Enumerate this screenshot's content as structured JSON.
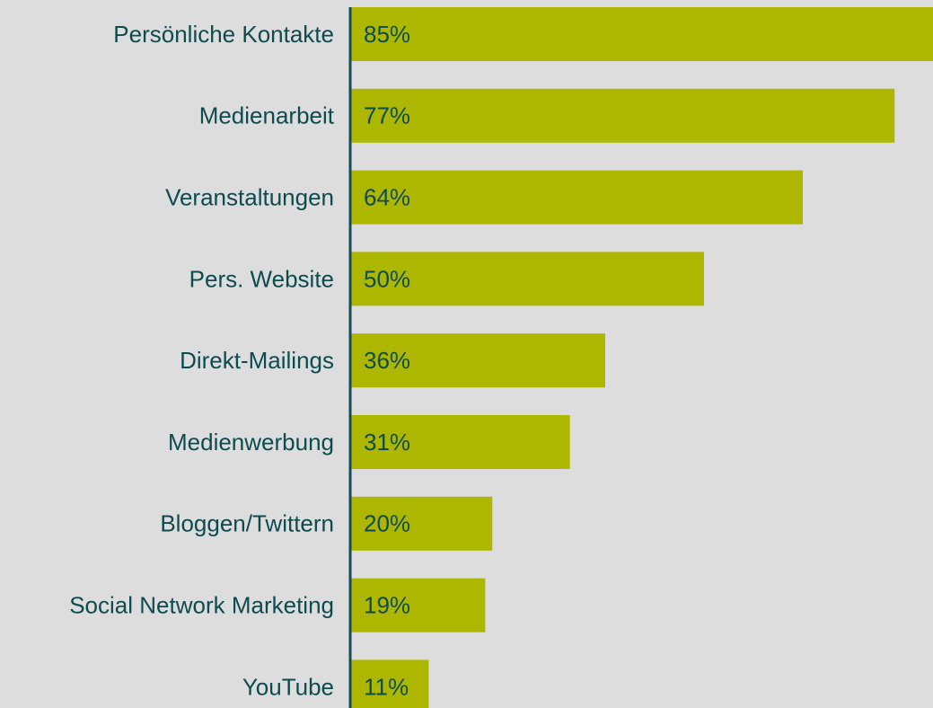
{
  "chart_data": {
    "type": "barh",
    "categories": [
      "Persönliche Kontakte",
      "Medienarbeit",
      "Veranstaltungen",
      "Pers. Website",
      "Direkt-Mailings",
      "Medienwerbung",
      "Bloggen/Twittern",
      "Social Network Marketing",
      "YouTube"
    ],
    "values": [
      85,
      77,
      64,
      50,
      36,
      31,
      20,
      19,
      11
    ],
    "value_labels": [
      "85%",
      "77%",
      "64%",
      "50%",
      "36%",
      "31%",
      "20%",
      "19%",
      "11%"
    ],
    "color": "#adb700"
  }
}
